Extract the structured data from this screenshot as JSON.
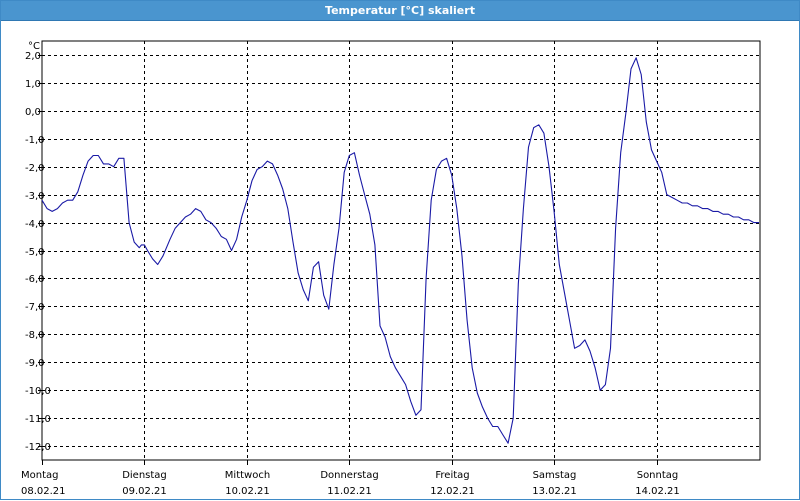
{
  "window": {
    "title": "Temperatur [°C] skaliert"
  },
  "colors": {
    "title_bar": "#4a95cf",
    "line": "#1a1aa6",
    "grid": "#000000"
  },
  "chart_data": {
    "type": "line",
    "title": "Temperatur [°C] skaliert",
    "ylabel": "°C",
    "ylim": [
      -12.5,
      2.5
    ],
    "xlim": [
      0,
      7
    ],
    "grid": true,
    "y_ticks": [
      "2,0",
      "1,0",
      "0,0",
      "-1,0",
      "-2,0",
      "-3,0",
      "-4,0",
      "-5,0",
      "-6,0",
      "-7,0",
      "-8,0",
      "-9,0",
      "-10,0",
      "-11,0",
      "-12,0"
    ],
    "y_tick_values": [
      2,
      1,
      0,
      -1,
      -2,
      -3,
      -4,
      -5,
      -6,
      -7,
      -8,
      -9,
      -10,
      -11,
      -12
    ],
    "x_ticks": [
      {
        "day": "Montag",
        "date": "08.02.21"
      },
      {
        "day": "Dienstag",
        "date": "09.02.21"
      },
      {
        "day": "Mittwoch",
        "date": "10.02.21"
      },
      {
        "day": "Donnerstag",
        "date": "11.02.21"
      },
      {
        "day": "Freitag",
        "date": "12.02.21"
      },
      {
        "day": "Samstag",
        "date": "13.02.21"
      },
      {
        "day": "Sonntag",
        "date": "14.02.21"
      }
    ],
    "series": [
      {
        "x": [
          0,
          0.05,
          0.1,
          0.15,
          0.2,
          0.25,
          0.3,
          0.35,
          0.4,
          0.45,
          0.5,
          0.55,
          0.6,
          0.65,
          0.7,
          0.75,
          0.8,
          0.85,
          0.9,
          0.95,
          0.97,
          1.0,
          1.03,
          1.08,
          1.13,
          1.18,
          1.25,
          1.3,
          1.35,
          1.4,
          1.45,
          1.5,
          1.55,
          1.6,
          1.65,
          1.7,
          1.75,
          1.8,
          1.85,
          1.9,
          1.95,
          2.0,
          2.05,
          2.1,
          2.15,
          2.2,
          2.25,
          2.3,
          2.35,
          2.4,
          2.45,
          2.5,
          2.55,
          2.6,
          2.65,
          2.7,
          2.75,
          2.8,
          2.85,
          2.9,
          2.95,
          3.0,
          3.05,
          3.1,
          3.15,
          3.2,
          3.25,
          3.3,
          3.35,
          3.4,
          3.45,
          3.5,
          3.55,
          3.6,
          3.65,
          3.7,
          3.75,
          3.8,
          3.85,
          3.9,
          3.95,
          4.0,
          4.05,
          4.1,
          4.15,
          4.2,
          4.25,
          4.3,
          4.35,
          4.4,
          4.45,
          4.5,
          4.55,
          4.6,
          4.65,
          4.7,
          4.75,
          4.8,
          4.85,
          4.9,
          4.95,
          5.0,
          5.05,
          5.1,
          5.15,
          5.2,
          5.25,
          5.3,
          5.35,
          5.4,
          5.45,
          5.5,
          5.55,
          5.6,
          5.65,
          5.7,
          5.75,
          5.8,
          5.85,
          5.9,
          5.95,
          6.0,
          6.05,
          6.1,
          6.15,
          6.2,
          6.25,
          6.3,
          6.35,
          6.4,
          6.45,
          6.5,
          6.55,
          6.6,
          6.65,
          6.7,
          6.75,
          6.8,
          6.85,
          6.9,
          6.95,
          7.0
        ],
        "y": [
          -3.2,
          -3.5,
          -3.6,
          -3.5,
          -3.3,
          -3.2,
          -3.2,
          -2.9,
          -2.3,
          -1.8,
          -1.6,
          -1.6,
          -1.9,
          -1.9,
          -2.0,
          -1.7,
          -1.7,
          -4.0,
          -4.7,
          -4.9,
          -4.8,
          -4.8,
          -5.0,
          -5.3,
          -5.5,
          -5.2,
          -4.6,
          -4.2,
          -4.0,
          -3.8,
          -3.7,
          -3.5,
          -3.6,
          -3.9,
          -4.0,
          -4.2,
          -4.5,
          -4.6,
          -5.0,
          -4.6,
          -3.8,
          -3.2,
          -2.5,
          -2.1,
          -2.0,
          -1.8,
          -1.9,
          -2.3,
          -2.8,
          -3.5,
          -4.7,
          -5.8,
          -6.4,
          -6.8,
          -5.6,
          -5.4,
          -6.6,
          -7.1,
          -5.5,
          -4.2,
          -2.2,
          -1.6,
          -1.5,
          -2.3,
          -3.0,
          -3.7,
          -4.8,
          -7.7,
          -8.1,
          -8.8,
          -9.2,
          -9.5,
          -9.8,
          -10.4,
          -10.9,
          -10.7,
          -6.0,
          -3.2,
          -2.1,
          -1.8,
          -1.7,
          -2.3,
          -3.5,
          -5.2,
          -7.5,
          -9.2,
          -10.1,
          -10.6,
          -11.0,
          -11.3,
          -11.3,
          -11.6,
          -11.9,
          -11.0,
          -6.2,
          -3.5,
          -1.3,
          -0.6,
          -0.5,
          -0.8,
          -2.0,
          -3.6,
          -5.5,
          -6.5,
          -7.5,
          -8.5,
          -8.4,
          -8.2,
          -8.6,
          -9.2,
          -10.0,
          -9.8,
          -8.5,
          -4.2,
          -1.5,
          -0.1,
          1.5,
          1.9,
          1.3,
          -0.4,
          -1.4,
          -1.8,
          -2.2,
          -3.0,
          -3.1,
          -3.2,
          -3.3,
          -3.3,
          -3.4,
          -3.4,
          -3.5,
          -3.5,
          -3.6,
          -3.6,
          -3.7,
          -3.7,
          -3.8,
          -3.8,
          -3.9,
          -3.9,
          -4.0,
          -4.0
        ]
      }
    ]
  }
}
